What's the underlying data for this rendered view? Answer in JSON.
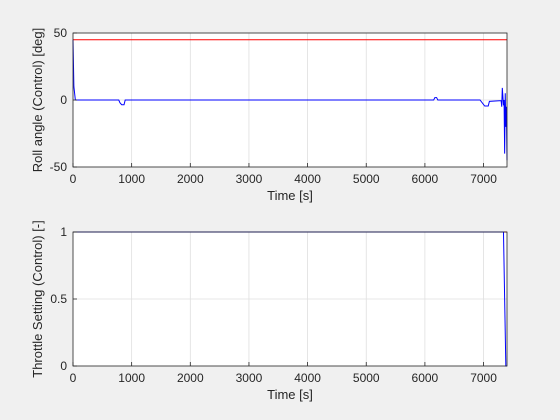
{
  "figure": {
    "background": "#f0f0f0"
  },
  "chart_data": [
    {
      "type": "line",
      "xlabel": "Time [s]",
      "ylabel": "Roll angle (Control) [deg]",
      "xlim": [
        0,
        7400
      ],
      "ylim": [
        -50,
        50
      ],
      "xticks": [
        "0",
        "1000",
        "2000",
        "3000",
        "4000",
        "5000",
        "6000",
        "7000"
      ],
      "xtick_values": [
        0,
        1000,
        2000,
        3000,
        4000,
        5000,
        6000,
        7000
      ],
      "yticks": [
        "50",
        "0",
        "-50"
      ],
      "ytick_values": [
        50,
        0,
        -50
      ],
      "grid": true,
      "series": [
        {
          "color": "#ff0000",
          "x": [
            0,
            7400
          ],
          "y": [
            45,
            45
          ]
        },
        {
          "color": "#0000ff",
          "x": [
            0,
            15,
            40,
            780,
            800,
            830,
            870,
            890,
            6150,
            6170,
            6200,
            6220,
            6900,
            6940,
            7020,
            7040,
            7080,
            7100,
            7300,
            7310,
            7320,
            7340,
            7350,
            7360,
            7370,
            7380,
            7390,
            7400
          ],
          "y": [
            45,
            10,
            0,
            0,
            -2,
            -3.5,
            -3.5,
            0,
            0,
            1.8,
            1.8,
            0,
            0,
            0,
            -4.5,
            -4.5,
            -4.5,
            -1,
            -0.5,
            -5,
            9,
            -4,
            0,
            -40,
            5,
            -20,
            -5,
            -45
          ]
        }
      ]
    },
    {
      "type": "line",
      "xlabel": "Time [s]",
      "ylabel": "Throttle Setting (Control) [-]",
      "xlim": [
        0,
        7400
      ],
      "ylim": [
        0,
        1
      ],
      "xticks": [
        "0",
        "1000",
        "2000",
        "3000",
        "4000",
        "5000",
        "6000",
        "7000"
      ],
      "xtick_values": [
        0,
        1000,
        2000,
        3000,
        4000,
        5000,
        6000,
        7000
      ],
      "yticks": [
        "1",
        "0.5",
        "0"
      ],
      "ytick_values": [
        1,
        0.5,
        0
      ],
      "grid": true,
      "series": [
        {
          "color": "#ff0000",
          "x": [
            0,
            7400
          ],
          "y": [
            1,
            1
          ]
        },
        {
          "color": "#0000ff",
          "x": [
            0,
            7340,
            7360,
            7380,
            7400
          ],
          "y": [
            1,
            1,
            0.5,
            0,
            0
          ]
        }
      ]
    }
  ]
}
